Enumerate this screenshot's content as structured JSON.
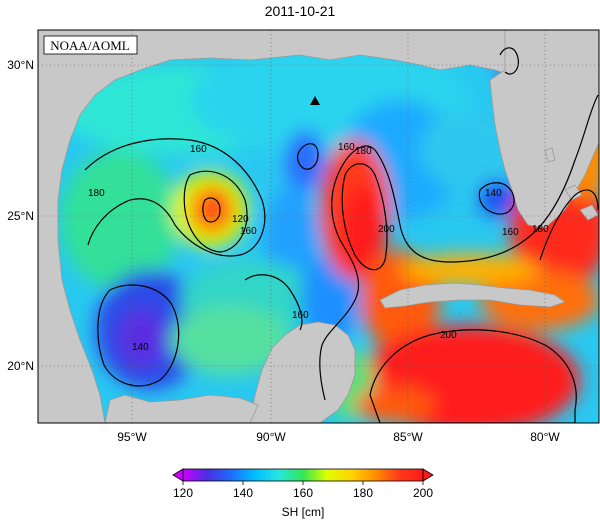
{
  "title": "2011-10-21",
  "credit": "NOAA/AOML",
  "colors": {
    "land": "#c8c8c8",
    "gradient": [
      "#cc00ff",
      "#4a2ee0",
      "#1e6cff",
      "#00bfff",
      "#29e6e0",
      "#33e655",
      "#dfff00",
      "#ffd500",
      "#ff9000",
      "#ff3a1a",
      "#ff1a1a"
    ]
  },
  "axes": {
    "lat_ticks": [
      "30°N",
      "25°N",
      "20°N"
    ],
    "lon_ticks": [
      "95°W",
      "90°W",
      "85°W",
      "80°W"
    ]
  },
  "contour_labels": [
    "160",
    "160",
    "160",
    "160",
    "160",
    "180",
    "180",
    "180",
    "120",
    "140",
    "140",
    "200",
    "200"
  ],
  "colorbar": {
    "title": "SH [cm]",
    "ticks": [
      "120",
      "140",
      "160",
      "180",
      "200"
    ]
  },
  "marker": "triangle"
}
